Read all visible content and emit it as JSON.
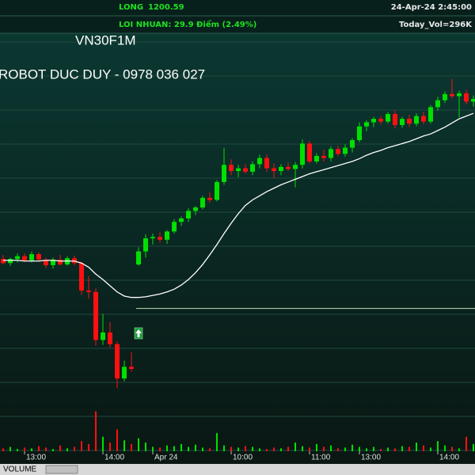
{
  "chart_data": {
    "type": "candlestick",
    "symbol": "VN30F1M",
    "title": "ROBOT DUC DUY - 0978 036 027",
    "entry": {
      "label": "LONG",
      "price": 1200.59,
      "color": "#b8e0b8"
    },
    "profit_text": "LOI NHUAN: 29.9 Điểm  (2.49%)",
    "timestamp": "24-Apr-24 2:45:00",
    "today_volume": "Today_Vol=296K",
    "volume_label": "VOLUME",
    "up_color": "#00e000",
    "down_color": "#ff1010",
    "ylim": [
      1180.5,
      1245.5
    ],
    "volume_ylim": [
      0,
      60
    ],
    "categories": [
      null,
      null,
      null,
      "13:00",
      null,
      null,
      null,
      null,
      null,
      null,
      null,
      null,
      null,
      null,
      "14:00",
      null,
      null,
      null,
      null,
      null,
      null,
      "Apr 24",
      null,
      null,
      null,
      null,
      null,
      null,
      null,
      null,
      null,
      null,
      "10:00",
      null,
      null,
      null,
      null,
      null,
      null,
      null,
      null,
      null,
      null,
      "11:00",
      null,
      null,
      null,
      null,
      null,
      null,
      "13:00",
      null,
      null,
      null,
      null,
      null,
      null,
      null,
      null,
      null,
      null,
      "14:00",
      null,
      null,
      null,
      null,
      null
    ],
    "ohlc": [
      [
        1207.8,
        1208.4,
        1207.0,
        1207.2
      ],
      [
        1207.2,
        1208.0,
        1206.8,
        1207.8
      ],
      [
        1207.8,
        1208.6,
        1207.3,
        1208.2
      ],
      [
        1208.2,
        1208.6,
        1207.4,
        1207.6
      ],
      [
        1207.6,
        1208.9,
        1207.3,
        1208.5
      ],
      [
        1208.5,
        1208.8,
        1207.4,
        1207.7
      ],
      [
        1207.7,
        1208.0,
        1206.5,
        1206.9
      ],
      [
        1206.9,
        1208.0,
        1206.4,
        1207.7
      ],
      [
        1207.7,
        1208.4,
        1206.8,
        1207.0
      ],
      [
        1207.0,
        1208.2,
        1206.8,
        1207.9
      ],
      [
        1207.9,
        1208.3,
        1206.9,
        1207.2
      ],
      [
        1207.2,
        1207.4,
        1202.6,
        1203.2
      ],
      [
        1203.2,
        1205.3,
        1202.0,
        1203.0
      ],
      [
        1203.0,
        1203.5,
        1195.2,
        1196.0
      ],
      [
        1196.0,
        1199.8,
        1195.3,
        1197.1
      ],
      [
        1197.1,
        1198.6,
        1194.9,
        1195.4
      ],
      [
        1195.4,
        1195.8,
        1189.0,
        1190.4
      ],
      [
        1190.4,
        1193.0,
        1190.0,
        1192.1
      ],
      [
        1192.1,
        1194.2,
        1191.4,
        1191.8
      ],
      [
        1207.0,
        1209.5,
        1206.8,
        1208.9
      ],
      [
        1208.9,
        1211.4,
        1208.0,
        1210.8
      ],
      [
        1210.8,
        1211.5,
        1209.9,
        1211.0
      ],
      [
        1211.0,
        1211.7,
        1210.2,
        1210.6
      ],
      [
        1210.6,
        1212.0,
        1210.0,
        1211.8
      ],
      [
        1211.8,
        1213.6,
        1211.5,
        1213.2
      ],
      [
        1213.2,
        1214.0,
        1212.6,
        1213.7
      ],
      [
        1213.7,
        1215.2,
        1213.2,
        1214.8
      ],
      [
        1214.8,
        1215.5,
        1214.2,
        1215.3
      ],
      [
        1215.3,
        1217.0,
        1215.0,
        1216.7
      ],
      [
        1216.7,
        1217.5,
        1216.0,
        1216.4
      ],
      [
        1216.4,
        1219.3,
        1216.2,
        1219.0
      ],
      [
        1219.0,
        1224.0,
        1218.6,
        1221.5
      ],
      [
        1221.5,
        1222.3,
        1220.0,
        1220.6
      ],
      [
        1220.6,
        1221.5,
        1219.7,
        1221.0
      ],
      [
        1221.0,
        1221.6,
        1220.2,
        1220.5
      ],
      [
        1220.5,
        1222.0,
        1220.0,
        1221.6
      ],
      [
        1221.6,
        1223.0,
        1221.0,
        1222.5
      ],
      [
        1222.5,
        1223.0,
        1220.5,
        1221.0
      ],
      [
        1221.0,
        1221.7,
        1219.6,
        1220.6
      ],
      [
        1220.6,
        1221.6,
        1220.0,
        1221.2
      ],
      [
        1221.2,
        1221.8,
        1220.6,
        1220.9
      ],
      [
        1220.9,
        1221.9,
        1218.2,
        1221.5
      ],
      [
        1221.5,
        1225.2,
        1221.0,
        1224.6
      ],
      [
        1224.6,
        1225.0,
        1221.7,
        1222.0
      ],
      [
        1222.0,
        1223.2,
        1221.7,
        1222.8
      ],
      [
        1222.8,
        1223.7,
        1222.0,
        1222.5
      ],
      [
        1222.5,
        1224.2,
        1222.0,
        1223.8
      ],
      [
        1223.8,
        1224.3,
        1222.8,
        1223.1
      ],
      [
        1223.1,
        1224.5,
        1222.7,
        1224.0
      ],
      [
        1224.0,
        1225.4,
        1223.3,
        1225.1
      ],
      [
        1225.1,
        1227.7,
        1224.8,
        1227.1
      ],
      [
        1227.1,
        1228.0,
        1226.4,
        1227.7
      ],
      [
        1227.7,
        1228.5,
        1227.0,
        1228.2
      ],
      [
        1228.2,
        1228.6,
        1227.4,
        1227.8
      ],
      [
        1227.8,
        1229.2,
        1227.5,
        1228.9
      ],
      [
        1228.9,
        1229.4,
        1226.8,
        1227.3
      ],
      [
        1227.3,
        1228.5,
        1226.9,
        1228.2
      ],
      [
        1228.2,
        1228.8,
        1227.0,
        1227.5
      ],
      [
        1227.5,
        1229.0,
        1227.1,
        1228.6
      ],
      [
        1228.6,
        1229.2,
        1227.4,
        1227.8
      ],
      [
        1227.8,
        1230.2,
        1227.5,
        1229.9
      ],
      [
        1229.9,
        1231.4,
        1229.4,
        1230.9
      ],
      [
        1230.9,
        1232.2,
        1230.5,
        1231.8
      ],
      [
        1231.8,
        1234.0,
        1231.2,
        1231.5
      ],
      [
        1231.5,
        1232.3,
        1228.4,
        1231.9
      ],
      [
        1231.9,
        1232.4,
        1230.3,
        1230.7
      ],
      [
        1230.7,
        1231.6,
        1230.0,
        1231.1
      ]
    ],
    "moving_average": {
      "color": "#ffffff",
      "values": [
        1207.6,
        1207.6,
        1207.6,
        1207.5,
        1207.5,
        1207.5,
        1207.6,
        1207.6,
        1207.5,
        1207.5,
        1207.5,
        1207.2,
        1206.6,
        1205.6,
        1204.8,
        1203.9,
        1203.0,
        1202.4,
        1202.2,
        1202.2,
        1202.3,
        1202.5,
        1202.7,
        1203.0,
        1203.4,
        1204.0,
        1204.8,
        1205.8,
        1207.0,
        1208.4,
        1209.9,
        1211.5,
        1213.0,
        1214.4,
        1215.6,
        1216.4,
        1217.0,
        1217.6,
        1218.1,
        1218.6,
        1219.0,
        1219.4,
        1219.8,
        1220.2,
        1220.5,
        1220.8,
        1221.1,
        1221.4,
        1221.7,
        1222.0,
        1222.4,
        1222.9,
        1223.3,
        1223.6,
        1224.0,
        1224.3,
        1224.6,
        1224.9,
        1225.3,
        1225.7,
        1226.0,
        1226.5,
        1227.0,
        1227.6,
        1228.2,
        1228.6,
        1229.0
      ]
    },
    "volume": [
      4,
      6,
      3,
      5,
      4,
      7,
      5,
      3,
      8,
      4,
      6,
      14,
      10,
      55,
      20,
      12,
      30,
      15,
      10,
      18,
      12,
      6,
      5,
      8,
      7,
      10,
      6,
      9,
      5,
      4,
      25,
      8,
      6,
      5,
      7,
      6,
      4,
      3,
      5,
      4,
      6,
      12,
      7,
      5,
      10,
      6,
      8,
      4,
      5,
      9,
      6,
      4,
      6,
      3,
      5,
      4,
      7,
      6,
      12,
      8,
      5,
      14,
      8,
      6,
      4,
      20,
      10
    ]
  }
}
